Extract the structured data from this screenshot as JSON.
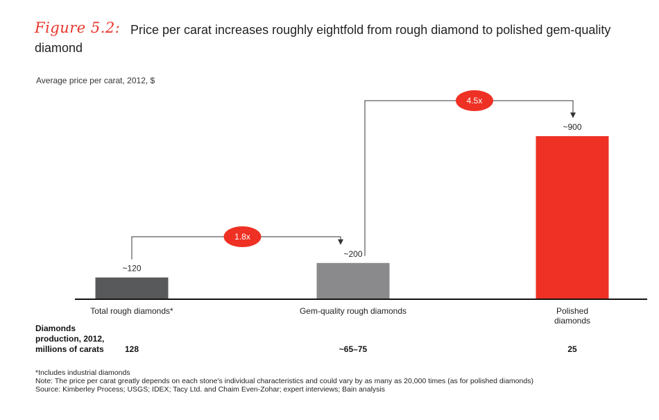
{
  "figure": {
    "label": "Figure 5.2:",
    "title": "Price per carat increases roughly eightfold from rough diamond to polished gem-quality diamond",
    "subtitle": "Average price per carat, 2012, $"
  },
  "chart_data": {
    "type": "bar",
    "categories": [
      "Total rough diamonds*",
      "Gem-quality rough diamonds",
      "Polished diamonds"
    ],
    "values": [
      120,
      200,
      900
    ],
    "value_labels": [
      "~120",
      "~200",
      "~900"
    ],
    "ylabel": "Average price per carat, 2012, $",
    "ylim": [
      0,
      1000
    ],
    "colors": [
      "#58595b",
      "#8a8a8c",
      "#ee3124"
    ],
    "multipliers": [
      {
        "from": 0,
        "to": 1,
        "label": "1.8x"
      },
      {
        "from": 1,
        "to": 2,
        "label": "4.5x"
      }
    ],
    "grid": false,
    "legend": "none"
  },
  "production": {
    "label_lines": [
      "Diamonds",
      "production, 2012,",
      "millions of carats"
    ],
    "values": [
      "128",
      "~65–75",
      "25"
    ]
  },
  "notes": [
    "*Includes industrial diamonds",
    "Note:  The price per carat greatly depends on each stone's individual characteristics and could vary by as many as 20,000 times (as for polished diamonds)",
    "Source:  Kimberley Process; USGS; IDEX; Tacy Ltd. and Chaim Even-Zohar; expert interviews; Bain analysis"
  ],
  "colors": {
    "accent": "#ee3124",
    "text": "#222222",
    "axis": "#111111"
  }
}
